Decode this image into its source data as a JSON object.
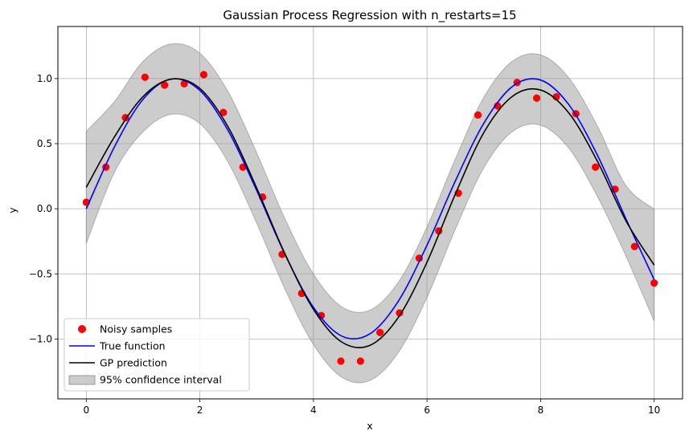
{
  "chart_data": {
    "type": "line",
    "title": "Gaussian Process Regression with n_restarts=15",
    "xlabel": "x",
    "ylabel": "y",
    "xlim": [
      -0.5,
      10.5
    ],
    "ylim": [
      -1.46,
      1.4
    ],
    "x_ticks": [
      0,
      2,
      4,
      6,
      8,
      10
    ],
    "y_ticks": [
      -1.0,
      -0.5,
      0.0,
      0.5,
      1.0
    ],
    "x_tick_labels": [
      "0",
      "2",
      "4",
      "6",
      "8",
      "10"
    ],
    "y_tick_labels": [
      "−1.0",
      "−0.5",
      "0.0",
      "0.5",
      "1.0"
    ],
    "grid": true,
    "legend_position": "lower-left",
    "legend": {
      "noisy": "Noisy samples",
      "true": "True function",
      "gp": "GP prediction",
      "ci": "95% confidence interval"
    },
    "colors": {
      "noisy": "#ff0000",
      "true": "#0000ff",
      "gp": "#000000",
      "ci": "#999999"
    },
    "series": [
      {
        "name": "Noisy samples",
        "kind": "scatter",
        "x": [
          0.0,
          0.345,
          0.69,
          1.034,
          1.379,
          1.724,
          2.069,
          2.414,
          2.759,
          3.103,
          3.448,
          3.793,
          4.138,
          4.483,
          4.828,
          5.172,
          5.517,
          5.862,
          6.207,
          6.552,
          6.897,
          7.241,
          7.586,
          7.931,
          8.276,
          8.621,
          8.966,
          9.31,
          9.655,
          10.0
        ],
        "y": [
          0.05,
          0.32,
          0.7,
          1.01,
          0.95,
          0.96,
          1.03,
          0.74,
          0.32,
          0.09,
          -0.35,
          -0.65,
          -0.82,
          -1.17,
          -1.17,
          -0.95,
          -0.8,
          -0.38,
          -0.17,
          0.12,
          0.72,
          0.79,
          0.97,
          0.85,
          0.86,
          0.73,
          0.32,
          0.15,
          -0.29,
          -0.57
        ]
      },
      {
        "name": "True function",
        "kind": "line",
        "x": [
          0.0,
          0.5,
          1.0,
          1.5,
          2.0,
          2.5,
          3.0,
          3.5,
          4.0,
          4.5,
          5.0,
          5.5,
          6.0,
          6.5,
          7.0,
          7.5,
          8.0,
          8.5,
          9.0,
          9.5,
          10.0
        ],
        "y": [
          0.0,
          0.479,
          0.841,
          0.997,
          0.909,
          0.598,
          0.141,
          -0.351,
          -0.757,
          -0.978,
          -0.959,
          -0.706,
          -0.279,
          0.215,
          0.657,
          0.938,
          0.989,
          0.798,
          0.412,
          -0.075,
          -0.544
        ]
      },
      {
        "name": "GP prediction",
        "kind": "line",
        "x": [
          0.0,
          0.5,
          1.0,
          1.5,
          2.0,
          2.5,
          3.0,
          3.5,
          4.0,
          4.5,
          5.0,
          5.5,
          6.0,
          6.5,
          7.0,
          7.5,
          8.0,
          8.5,
          9.0,
          9.5,
          10.0
        ],
        "y": [
          0.165,
          0.555,
          0.862,
          0.996,
          0.924,
          0.626,
          0.16,
          -0.348,
          -0.772,
          -1.024,
          -1.048,
          -0.831,
          -0.41,
          0.114,
          0.585,
          0.862,
          0.912,
          0.734,
          0.365,
          -0.09,
          -0.433
        ]
      },
      {
        "name": "95% confidence interval",
        "kind": "band",
        "x": [
          0.0,
          0.5,
          1.0,
          1.5,
          2.0,
          2.5,
          3.0,
          3.5,
          4.0,
          4.5,
          5.0,
          5.5,
          6.0,
          6.5,
          7.0,
          7.5,
          8.0,
          8.5,
          9.0,
          9.5,
          10.0
        ],
        "upper": [
          0.595,
          0.825,
          1.132,
          1.266,
          1.194,
          0.896,
          0.43,
          -0.078,
          -0.502,
          -0.754,
          -0.778,
          -0.561,
          -0.14,
          0.384,
          0.855,
          1.132,
          1.182,
          1.004,
          0.635,
          0.18,
          -0.003
        ],
        "lower": [
          -0.265,
          0.285,
          0.592,
          0.726,
          0.654,
          0.356,
          -0.11,
          -0.618,
          -1.042,
          -1.294,
          -1.318,
          -1.101,
          -0.68,
          -0.156,
          0.315,
          0.592,
          0.642,
          0.464,
          0.095,
          -0.36,
          -0.863
        ]
      }
    ]
  }
}
